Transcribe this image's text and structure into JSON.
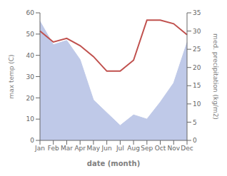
{
  "chart_data": {
    "type": "combo",
    "xlabel": "date (month)",
    "ylabel": "max temp (C)",
    "y2label": "med. precipitation (kg/m2)",
    "categories": [
      "Jan",
      "Feb",
      "Mar",
      "Apr",
      "May",
      "Jun",
      "Jul",
      "Aug",
      "Sep",
      "Oct",
      "Nov",
      "Dec"
    ],
    "series": [
      {
        "type": "area",
        "color": "#bfc9e8",
        "values": [
          56,
          45,
          47,
          38,
          19,
          13,
          7,
          12,
          10,
          18,
          27,
          46
        ]
      },
      {
        "type": "line",
        "axis": "y2",
        "color": "#c0504d",
        "values": [
          30,
          27,
          28,
          26,
          23,
          19,
          19,
          22,
          33,
          33,
          32,
          29
        ]
      }
    ],
    "ylim": [
      0,
      60
    ],
    "yticks": [
      0,
      10,
      20,
      30,
      40,
      50,
      60
    ],
    "y2lim": [
      0,
      35
    ],
    "y2ticks": [
      0,
      5,
      10,
      15,
      20,
      25,
      30,
      35
    ],
    "grid": false
  }
}
